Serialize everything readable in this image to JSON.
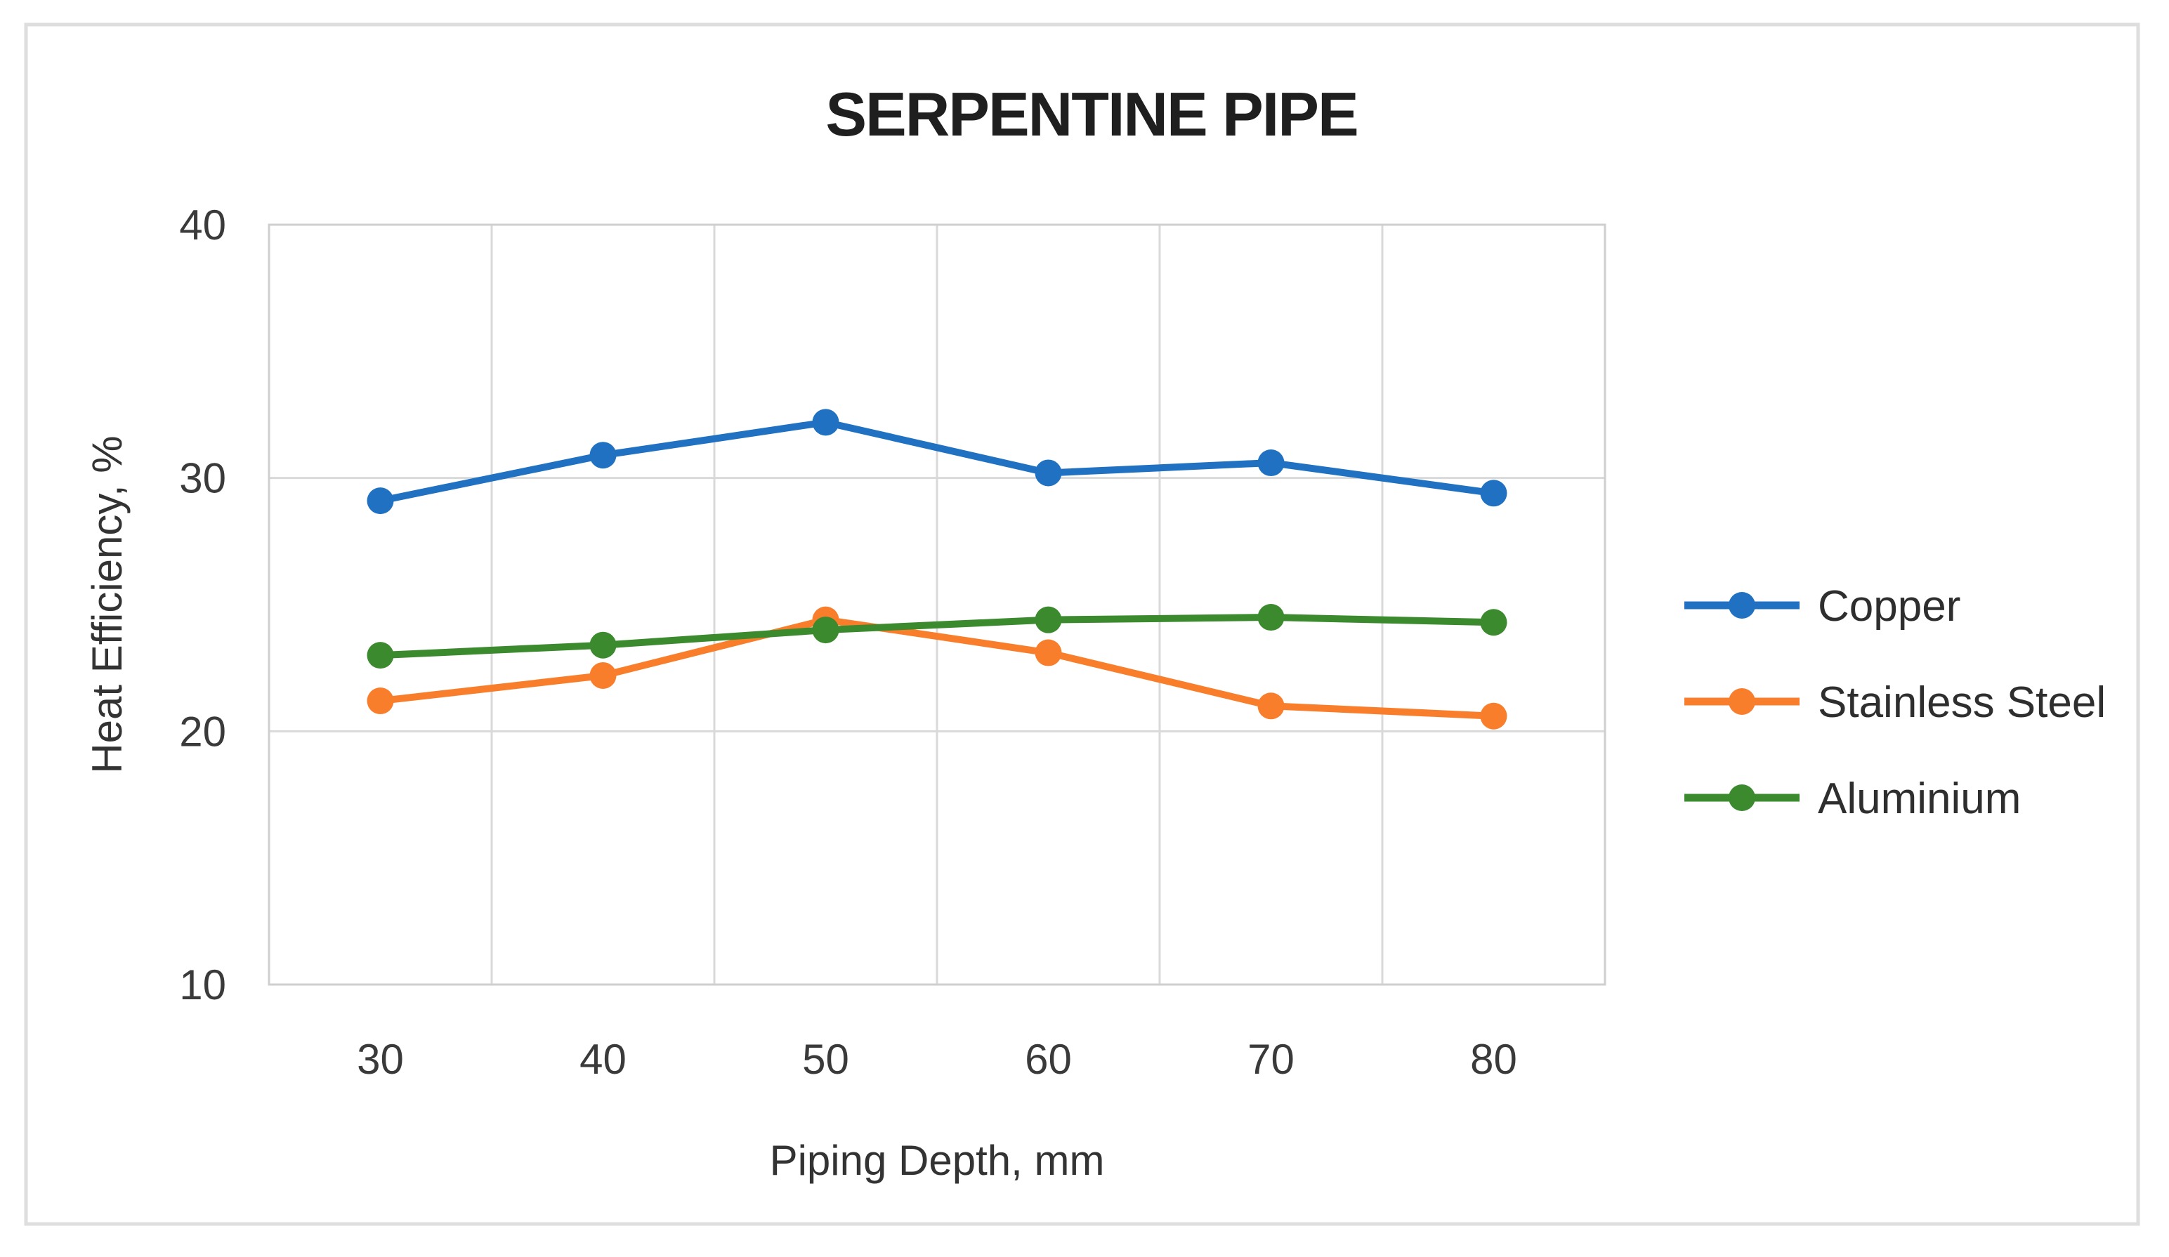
{
  "chart_data": {
    "type": "line",
    "title": "SERPENTINE PIPE",
    "xlabel": "Piping Depth, mm",
    "ylabel": "Heat Efficiency, %",
    "categories": [
      "30",
      "40",
      "50",
      "60",
      "70",
      "80"
    ],
    "yticks": [
      10,
      20,
      30,
      40
    ],
    "ylim": [
      10,
      40
    ],
    "grid": true,
    "legend_position": "right",
    "series": [
      {
        "name": "Copper",
        "color": "#2071C1",
        "values": [
          29.1,
          30.9,
          32.2,
          30.2,
          30.6,
          29.4
        ]
      },
      {
        "name": "Stainless Steel",
        "color": "#F97E2C",
        "values": [
          21.2,
          22.2,
          24.4,
          23.1,
          21.0,
          20.6
        ]
      },
      {
        "name": "Aluminium",
        "color": "#3B8A2E",
        "values": [
          23.0,
          23.4,
          24.0,
          24.4,
          24.5,
          24.3
        ]
      }
    ]
  }
}
